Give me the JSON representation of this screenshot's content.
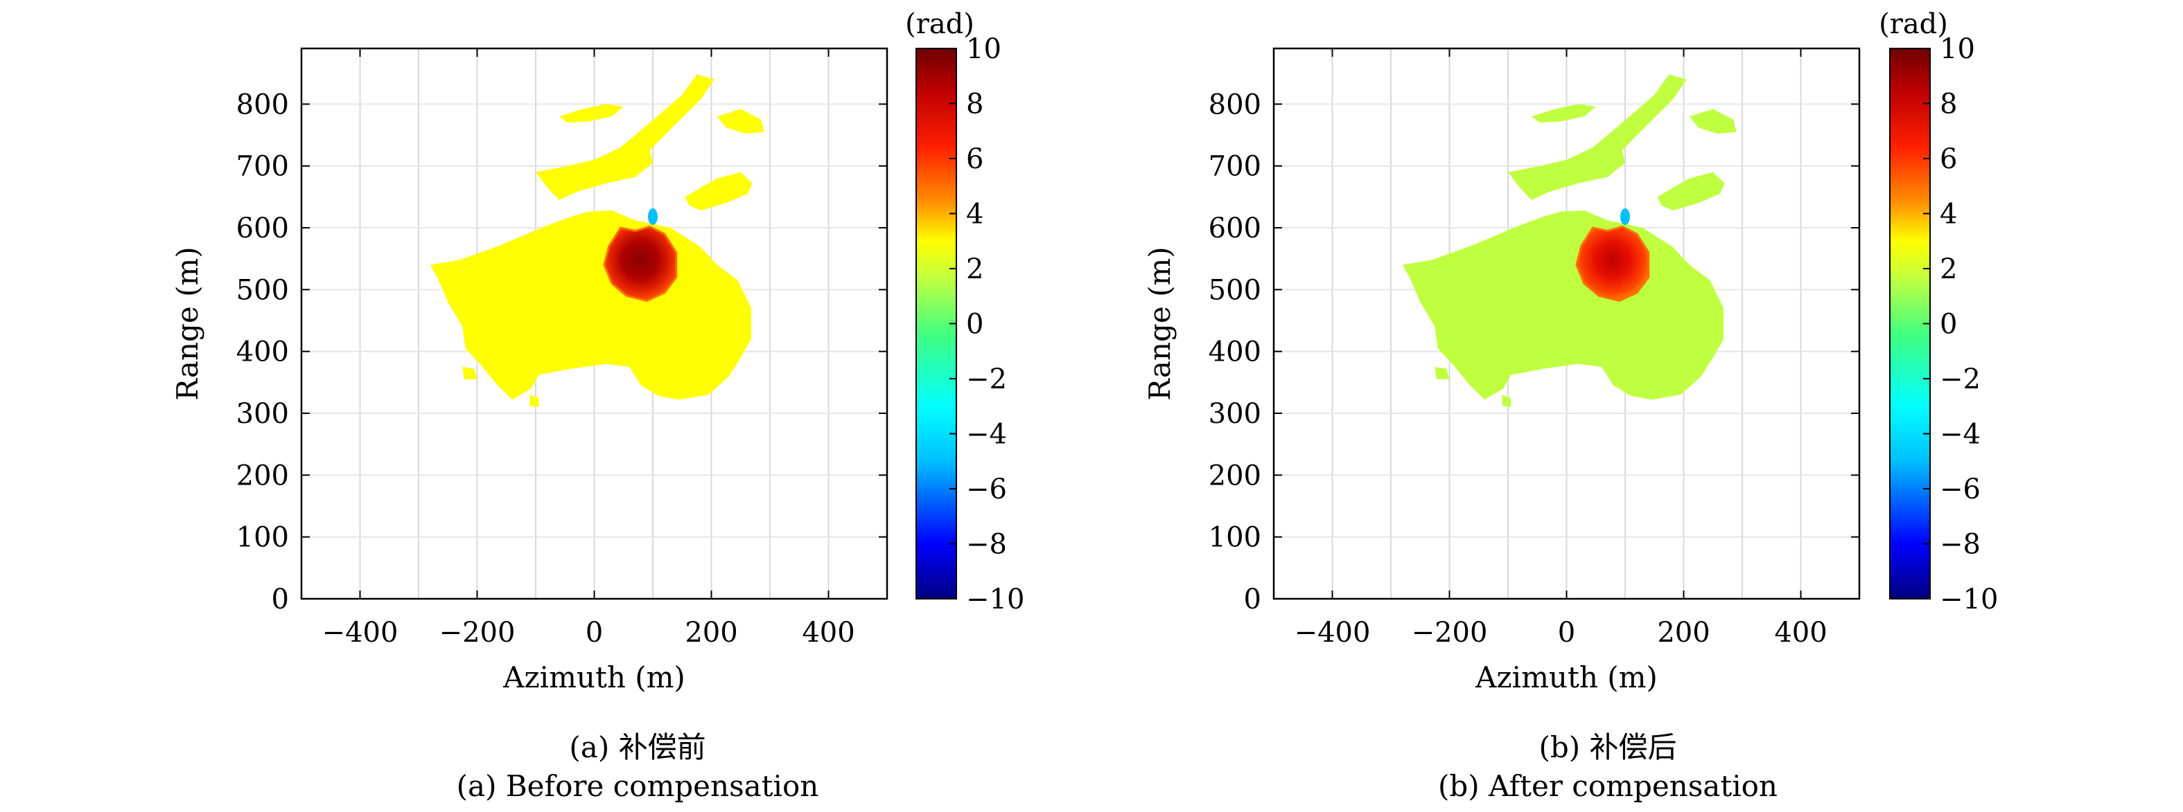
{
  "chart_data": [
    {
      "type": "heatmap",
      "panel": "a",
      "xlabel": "Azimuth (m)",
      "ylabel": "Range (m)",
      "xlim": [
        -500,
        500
      ],
      "ylim": [
        0,
        890
      ],
      "x_ticks": [
        -400,
        -200,
        0,
        200,
        400
      ],
      "y_ticks": [
        0,
        100,
        200,
        300,
        400,
        500,
        600,
        700,
        800
      ],
      "grid": true,
      "colorbar": {
        "unit": "(rad)",
        "range": [
          -10,
          10
        ],
        "ticks": [
          10,
          8,
          6,
          4,
          2,
          0,
          -2,
          -4,
          -6,
          -8,
          -10
        ],
        "colormap": [
          "#000080",
          "#0000ff",
          "#00bfff",
          "#00ffff",
          "#40ff80",
          "#c0ff40",
          "#ffff00",
          "#ff9000",
          "#ff2000",
          "#c00000",
          "#700000"
        ]
      },
      "background_phase": 2.0,
      "subsidence_peak": {
        "azimuth": 95,
        "range": 540,
        "phase": 9.5
      },
      "caption_cn": "(a) 补偿前",
      "caption_en": "(a) Before compensation"
    },
    {
      "type": "heatmap",
      "panel": "b",
      "xlabel": "Azimuth (m)",
      "ylabel": "Range (m)",
      "xlim": [
        -500,
        500
      ],
      "ylim": [
        0,
        890
      ],
      "x_ticks": [
        -400,
        -200,
        0,
        200,
        400
      ],
      "y_ticks": [
        0,
        100,
        200,
        300,
        400,
        500,
        600,
        700,
        800
      ],
      "grid": true,
      "colorbar": {
        "unit": "(rad)",
        "range": [
          -10,
          10
        ],
        "ticks": [
          10,
          8,
          6,
          4,
          2,
          0,
          -2,
          -4,
          -6,
          -8,
          -10
        ],
        "colormap": [
          "#000080",
          "#0000ff",
          "#00bfff",
          "#00ffff",
          "#40ff80",
          "#c0ff40",
          "#ffff00",
          "#ff9000",
          "#ff2000",
          "#c00000",
          "#700000"
        ]
      },
      "background_phase": 0.3,
      "subsidence_peak": {
        "azimuth": 95,
        "range": 540,
        "phase": 7.5
      },
      "caption_cn": "(b) 补偿后",
      "caption_en": "(b) After compensation"
    }
  ],
  "captions": {
    "a_cn": "(a) 补偿前",
    "a_en": "(a) Before compensation",
    "b_cn": "(b) 补偿后",
    "b_en": "(b) After compensation"
  }
}
